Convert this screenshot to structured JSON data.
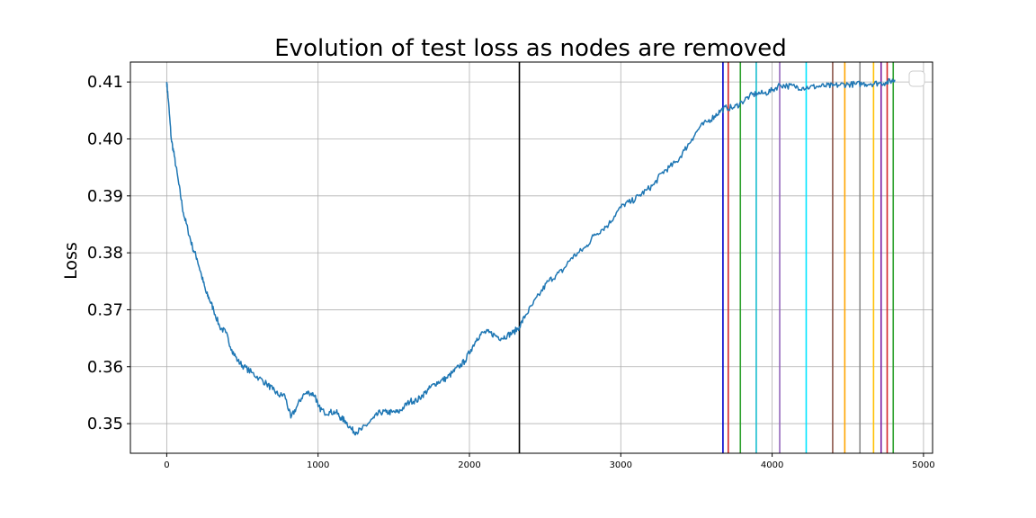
{
  "chart_data": {
    "type": "line",
    "title": "Evolution of test loss as nodes are removed",
    "xlabel": "",
    "ylabel": "Loss",
    "xlim": [
      -240,
      5060
    ],
    "ylim": [
      0.3448,
      0.4135
    ],
    "xticks": [
      0,
      1000,
      2000,
      3000,
      4000,
      5000
    ],
    "yticks": [
      0.35,
      0.36,
      0.37,
      0.38,
      0.39,
      0.4,
      0.41
    ],
    "ytick_labels": [
      "0.35",
      "0.36",
      "0.37",
      "0.38",
      "0.39",
      "0.40",
      "0.41"
    ],
    "grid": true,
    "legend": "top-right, empty",
    "series": [
      {
        "color": "#1f77b4",
        "points": [
          [
            0,
            0.41
          ],
          [
            10,
            0.407
          ],
          [
            30,
            0.4
          ],
          [
            50,
            0.397
          ],
          [
            80,
            0.392
          ],
          [
            110,
            0.387
          ],
          [
            140,
            0.384
          ],
          [
            170,
            0.381
          ],
          [
            200,
            0.379
          ],
          [
            230,
            0.376
          ],
          [
            260,
            0.373
          ],
          [
            280,
            0.372
          ],
          [
            310,
            0.37
          ],
          [
            350,
            0.367
          ],
          [
            390,
            0.366
          ],
          [
            430,
            0.363
          ],
          [
            470,
            0.361
          ],
          [
            510,
            0.36
          ],
          [
            560,
            0.359
          ],
          [
            610,
            0.358
          ],
          [
            660,
            0.357
          ],
          [
            700,
            0.356
          ],
          [
            740,
            0.355
          ],
          [
            780,
            0.355
          ],
          [
            820,
            0.351
          ],
          [
            860,
            0.353
          ],
          [
            900,
            0.355
          ],
          [
            940,
            0.3555
          ],
          [
            980,
            0.355
          ],
          [
            1000,
            0.353
          ],
          [
            1040,
            0.352
          ],
          [
            1080,
            0.352
          ],
          [
            1120,
            0.352
          ],
          [
            1150,
            0.351
          ],
          [
            1180,
            0.3505
          ],
          [
            1220,
            0.349
          ],
          [
            1250,
            0.3485
          ],
          [
            1290,
            0.349
          ],
          [
            1330,
            0.35
          ],
          [
            1370,
            0.351
          ],
          [
            1410,
            0.352
          ],
          [
            1450,
            0.352
          ],
          [
            1490,
            0.352
          ],
          [
            1530,
            0.352
          ],
          [
            1570,
            0.353
          ],
          [
            1610,
            0.354
          ],
          [
            1650,
            0.354
          ],
          [
            1690,
            0.355
          ],
          [
            1730,
            0.356
          ],
          [
            1770,
            0.357
          ],
          [
            1810,
            0.3575
          ],
          [
            1850,
            0.358
          ],
          [
            1890,
            0.359
          ],
          [
            1930,
            0.36
          ],
          [
            1970,
            0.361
          ],
          [
            2010,
            0.363
          ],
          [
            2050,
            0.365
          ],
          [
            2090,
            0.366
          ],
          [
            2130,
            0.366
          ],
          [
            2170,
            0.3655
          ],
          [
            2210,
            0.365
          ],
          [
            2250,
            0.3655
          ],
          [
            2290,
            0.366
          ],
          [
            2330,
            0.367
          ],
          [
            2370,
            0.369
          ],
          [
            2420,
            0.371
          ],
          [
            2470,
            0.373
          ],
          [
            2520,
            0.375
          ],
          [
            2570,
            0.376
          ],
          [
            2620,
            0.377
          ],
          [
            2670,
            0.379
          ],
          [
            2720,
            0.38
          ],
          [
            2770,
            0.381
          ],
          [
            2820,
            0.383
          ],
          [
            2870,
            0.384
          ],
          [
            2920,
            0.385
          ],
          [
            2970,
            0.387
          ],
          [
            3020,
            0.3885
          ],
          [
            3070,
            0.389
          ],
          [
            3120,
            0.39
          ],
          [
            3170,
            0.391
          ],
          [
            3220,
            0.392
          ],
          [
            3270,
            0.394
          ],
          [
            3320,
            0.395
          ],
          [
            3370,
            0.396
          ],
          [
            3420,
            0.398
          ],
          [
            3470,
            0.4
          ],
          [
            3520,
            0.402
          ],
          [
            3570,
            0.403
          ],
          [
            3620,
            0.404
          ],
          [
            3660,
            0.405
          ],
          [
            3700,
            0.4055
          ],
          [
            3750,
            0.4055
          ],
          [
            3800,
            0.4065
          ],
          [
            3850,
            0.4075
          ],
          [
            3900,
            0.408
          ],
          [
            3950,
            0.408
          ],
          [
            4000,
            0.4085
          ],
          [
            4050,
            0.4095
          ],
          [
            4100,
            0.4093
          ],
          [
            4150,
            0.4092
          ],
          [
            4200,
            0.409
          ],
          [
            4250,
            0.4091
          ],
          [
            4300,
            0.4092
          ],
          [
            4350,
            0.4093
          ],
          [
            4400,
            0.4093
          ],
          [
            4450,
            0.4095
          ],
          [
            4500,
            0.4096
          ],
          [
            4550,
            0.4096
          ],
          [
            4600,
            0.4097
          ],
          [
            4650,
            0.4097
          ],
          [
            4700,
            0.4098
          ],
          [
            4750,
            0.4099
          ],
          [
            4790,
            0.4102
          ],
          [
            4810,
            0.4104
          ]
        ]
      }
    ],
    "vertical_lines": [
      {
        "x": 2330,
        "color": "#000000"
      },
      {
        "x": 3675,
        "color": "#0000cc"
      },
      {
        "x": 3710,
        "color": "#d62728"
      },
      {
        "x": 3790,
        "color": "#2ca02c"
      },
      {
        "x": 3895,
        "color": "#17becf"
      },
      {
        "x": 4050,
        "color": "#9467bd"
      },
      {
        "x": 4225,
        "color": "#00e5ff"
      },
      {
        "x": 4400,
        "color": "#8c564b"
      },
      {
        "x": 4480,
        "color": "#ffa500"
      },
      {
        "x": 4580,
        "color": "#8c8c8c"
      },
      {
        "x": 4670,
        "color": "#ffc107"
      },
      {
        "x": 4720,
        "color": "#7b1fa2"
      },
      {
        "x": 4760,
        "color": "#d62728"
      },
      {
        "x": 4800,
        "color": "#2ca02c"
      }
    ]
  }
}
